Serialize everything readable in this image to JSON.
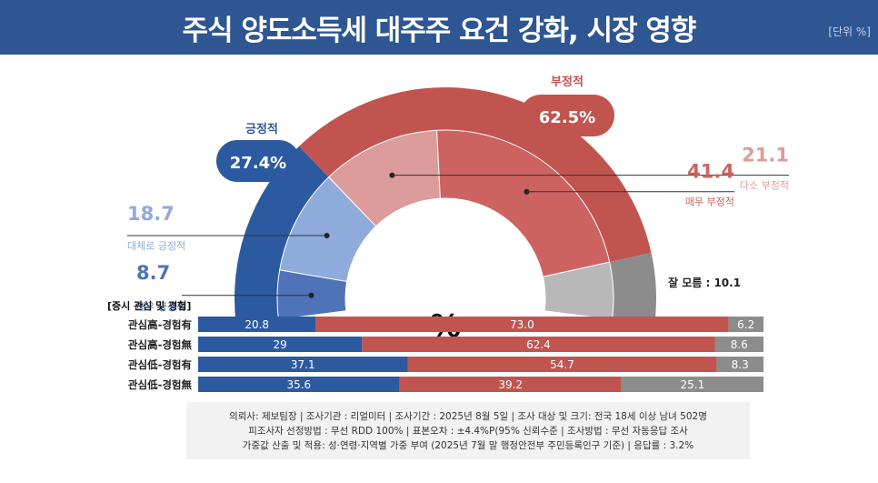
{
  "header": {
    "title": "주식 양도소득세 대주주 요건 강화, 시장 영향",
    "unit": "[단위 %]"
  },
  "center_label": "%",
  "chart_data": [
    {
      "type": "donut",
      "title": "주식 양도소득세 대주주 요건 강화, 시장 영향",
      "groups": [
        {
          "name": "긍정적",
          "value": 27.4,
          "label": "27.4%",
          "color": "#2c5aa0"
        },
        {
          "name": "부정적",
          "value": 62.5,
          "label": "62.5%",
          "color": "#c25450"
        },
        {
          "name": "잘 모름",
          "value": 10.1,
          "label": "잘 모름 : 10.1",
          "color": "#8c8c8c"
        }
      ],
      "slices": [
        {
          "name": "매우 긍정적",
          "value": 8.7,
          "value_label": "8.7",
          "color": "#4f73b8"
        },
        {
          "name": "대체로 긍정적",
          "value": 18.7,
          "value_label": "18.7",
          "color": "#8fabdb"
        },
        {
          "name": "다소 부정적",
          "value": 21.1,
          "value_label": "21.1",
          "color": "#dc9c9b"
        },
        {
          "name": "매우 부정적",
          "value": 41.4,
          "value_label": "41.4",
          "color": "#cc6360"
        },
        {
          "name": "잘 모름",
          "value": 10.1,
          "value_label": "",
          "color": "#b8b8b8"
        }
      ]
    },
    {
      "type": "bar",
      "orientation": "horizontal",
      "stacked": true,
      "title": "[증시 관심 및 경험]",
      "categories": [
        "관심高-경험有",
        "관심高-경험無",
        "관심低-경험有",
        "관심低-경험無"
      ],
      "series": [
        {
          "name": "긍정적",
          "color": "#2c5aa0",
          "values": [
            20.8,
            29,
            37.1,
            35.6
          ],
          "labels": [
            "20.8",
            "29",
            "37.1",
            "35.6"
          ]
        },
        {
          "name": "부정적",
          "color": "#c25450",
          "values": [
            73.0,
            62.4,
            54.7,
            39.2
          ],
          "labels": [
            "73.0",
            "62.4",
            "54.7",
            "39.2"
          ]
        },
        {
          "name": "잘 모름",
          "color": "#8c8c8c",
          "values": [
            6.2,
            8.6,
            8.3,
            25.1
          ],
          "labels": [
            "6.2",
            "8.6",
            "8.3",
            "25.1"
          ]
        }
      ]
    }
  ],
  "footer": {
    "line1": "의뢰사: 제보팀장 | 조사기관 : 리얼미터  |  조사기간 : 2025년 8월 5일 | 조사 대상 및 크기: 전국 18세 이상 남녀 502명",
    "line2": "피조사자 선정방법 : 무선 RDD 100% | 표본오차 : ±4.4%P(95% 신뢰수준 | 조사방법 : 무선 자동응답 조사",
    "line3": "가중값 산출 및 적용: 성·연령·지역별 가중 부여 (2025년 7월 말 행정안전부 주민등록인구 기준) | 응답률 : 3.2%"
  }
}
